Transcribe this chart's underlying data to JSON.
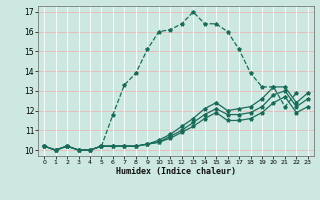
{
  "xlabel": "Humidex (Indice chaleur)",
  "bg_color": "#cce8e0",
  "grid_color_white": "#ffffff",
  "grid_color_pink": "#e8b8b8",
  "line_color": "#1a6b5a",
  "xlim": [
    -0.5,
    23.5
  ],
  "ylim": [
    9.7,
    17.3
  ],
  "xticks": [
    0,
    1,
    2,
    3,
    4,
    5,
    6,
    7,
    8,
    9,
    10,
    11,
    12,
    13,
    14,
    15,
    16,
    17,
    18,
    19,
    20,
    21,
    22,
    23
  ],
  "yticks": [
    10,
    11,
    12,
    13,
    14,
    15,
    16,
    17
  ],
  "series": [
    {
      "x": [
        0,
        1,
        2,
        3,
        4,
        5,
        6,
        7,
        8,
        9,
        10,
        11,
        12,
        13,
        14,
        15,
        16,
        17,
        18,
        19,
        20,
        21,
        22
      ],
      "y": [
        10.2,
        10.0,
        10.2,
        10.0,
        10.0,
        10.2,
        11.8,
        13.3,
        13.9,
        15.1,
        16.0,
        16.1,
        16.4,
        17.0,
        16.4,
        16.4,
        16.0,
        15.1,
        13.9,
        13.2,
        13.2,
        12.2,
        12.9
      ],
      "linestyle": "--"
    },
    {
      "x": [
        0,
        1,
        2,
        3,
        4,
        5,
        6,
        7,
        8,
        9,
        10,
        11,
        12,
        13,
        14,
        15,
        16,
        17,
        18,
        19,
        20,
        21,
        22,
        23
      ],
      "y": [
        10.2,
        10.0,
        10.2,
        10.0,
        10.0,
        10.2,
        10.2,
        10.2,
        10.2,
        10.3,
        10.5,
        10.8,
        11.2,
        11.6,
        12.1,
        12.4,
        12.0,
        12.1,
        12.2,
        12.6,
        13.2,
        13.2,
        12.4,
        12.9
      ],
      "linestyle": "-"
    },
    {
      "x": [
        0,
        1,
        2,
        3,
        4,
        5,
        6,
        7,
        8,
        9,
        10,
        11,
        12,
        13,
        14,
        15,
        16,
        17,
        18,
        19,
        20,
        21,
        22,
        23
      ],
      "y": [
        10.2,
        10.0,
        10.2,
        10.0,
        10.0,
        10.2,
        10.2,
        10.2,
        10.2,
        10.3,
        10.4,
        10.7,
        11.0,
        11.4,
        11.8,
        12.1,
        11.8,
        11.8,
        11.9,
        12.2,
        12.8,
        13.0,
        12.2,
        12.6
      ],
      "linestyle": "-"
    },
    {
      "x": [
        0,
        1,
        2,
        3,
        4,
        5,
        6,
        7,
        8,
        9,
        10,
        11,
        12,
        13,
        14,
        15,
        16,
        17,
        18,
        19,
        20,
        21,
        22,
        23
      ],
      "y": [
        10.2,
        10.0,
        10.2,
        10.0,
        10.0,
        10.2,
        10.2,
        10.2,
        10.2,
        10.3,
        10.4,
        10.6,
        10.9,
        11.2,
        11.6,
        11.9,
        11.5,
        11.5,
        11.6,
        11.9,
        12.4,
        12.7,
        11.9,
        12.2
      ],
      "linestyle": "-"
    }
  ]
}
